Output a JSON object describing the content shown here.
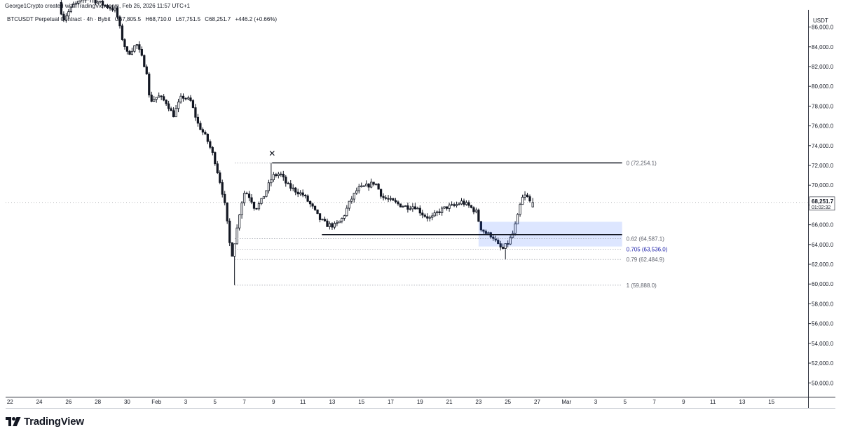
{
  "header": {
    "attribution": "George1Crypto created with TradingView.com, Feb 26, 2026 11:57 UTC+1",
    "symbol": "BTCUSDT Perpetual Contract · 4h · Bybit",
    "open": "O67,805.5",
    "high": "H68,710.0",
    "low": "L67,751.5",
    "close": "C68,251.7",
    "change": "+446.2 (+0.66%)"
  },
  "brand": {
    "name": "TradingView",
    "icon": "tradingview-logo-icon"
  },
  "price_axis": {
    "currency": "USDT",
    "last_price": "68,251.7",
    "countdown": "01:02:32"
  },
  "colors": {
    "candle": "#131722",
    "zone": "#2962ff",
    "fib_0705": "#1e22aa",
    "dotted": "#a3a6af",
    "grid": "#e0e3eb"
  },
  "chart_data": {
    "type": "candlestick",
    "timeframe": "4h",
    "ylim": [
      48600,
      87600
    ],
    "y_ticks": [
      50000,
      52000,
      54000,
      56000,
      58000,
      60000,
      62000,
      64000,
      66000,
      68000,
      70000,
      72000,
      74000,
      76000,
      78000,
      80000,
      82000,
      84000,
      86000
    ],
    "y_tick_labels": [
      "50,000.0",
      "52,000.0",
      "54,000.0",
      "56,000.0",
      "58,000.0",
      "60,000.0",
      "62,000.0",
      "64,000.0",
      "66,000.0",
      "68,000.0",
      "70,000.0",
      "72,000.0",
      "74,000.0",
      "76,000.0",
      "78,000.0",
      "80,000.0",
      "82,000.0",
      "84,000.0",
      "86,000.0"
    ],
    "x_ticks": [
      {
        "day": -10,
        "label": "22"
      },
      {
        "day": -8,
        "label": "24"
      },
      {
        "day": -6,
        "label": "26"
      },
      {
        "day": -4,
        "label": "28"
      },
      {
        "day": -2,
        "label": "30"
      },
      {
        "day": 0,
        "label": "Feb"
      },
      {
        "day": 2,
        "label": "3"
      },
      {
        "day": 4,
        "label": "5"
      },
      {
        "day": 6,
        "label": "7"
      },
      {
        "day": 8,
        "label": "9"
      },
      {
        "day": 10,
        "label": "11"
      },
      {
        "day": 12,
        "label": "13"
      },
      {
        "day": 14,
        "label": "15"
      },
      {
        "day": 16,
        "label": "17"
      },
      {
        "day": 18,
        "label": "19"
      },
      {
        "day": 20,
        "label": "21"
      },
      {
        "day": 22,
        "label": "23"
      },
      {
        "day": 24,
        "label": "25"
      },
      {
        "day": 26,
        "label": "27"
      },
      {
        "day": 28,
        "label": "Mar"
      },
      {
        "day": 30,
        "label": "3"
      },
      {
        "day": 32,
        "label": "5"
      },
      {
        "day": 34,
        "label": "7"
      },
      {
        "day": 36,
        "label": "9"
      },
      {
        "day": 38,
        "label": "11"
      },
      {
        "day": 40,
        "label": "13"
      },
      {
        "day": 42,
        "label": "15"
      }
    ],
    "x_day_range": [
      -10.3,
      44.5
    ],
    "price_path": [
      [
        -6.5,
        88500
      ],
      [
        -6.2,
        86800
      ],
      [
        -5.5,
        88200
      ],
      [
        -4.5,
        89000
      ],
      [
        -3.5,
        88300
      ],
      [
        -2.6,
        87700
      ],
      [
        -2.2,
        85000
      ],
      [
        -1.8,
        83200
      ],
      [
        -1.2,
        84300
      ],
      [
        -0.8,
        82800
      ],
      [
        -0.5,
        81500
      ],
      [
        -0.3,
        78500
      ],
      [
        0.3,
        79000
      ],
      [
        0.9,
        78300
      ],
      [
        1.3,
        77000
      ],
      [
        1.9,
        79000
      ],
      [
        2.5,
        78500
      ],
      [
        3.0,
        76200
      ],
      [
        3.6,
        74700
      ],
      [
        4.1,
        72800
      ],
      [
        4.6,
        69800
      ],
      [
        4.9,
        67500
      ],
      [
        5.1,
        64800
      ],
      [
        5.3,
        62800
      ],
      [
        5.6,
        65000
      ],
      [
        5.9,
        67800
      ],
      [
        6.2,
        69400
      ],
      [
        6.6,
        68700
      ],
      [
        6.9,
        67600
      ],
      [
        7.3,
        68300
      ],
      [
        7.7,
        69600
      ],
      [
        8.1,
        70900
      ],
      [
        8.6,
        71200
      ],
      [
        9.1,
        70000
      ],
      [
        9.6,
        69500
      ],
      [
        10.2,
        69000
      ],
      [
        10.8,
        67800
      ],
      [
        11.3,
        66600
      ],
      [
        11.8,
        66000
      ],
      [
        12.4,
        65900
      ],
      [
        12.9,
        66700
      ],
      [
        13.4,
        68400
      ],
      [
        13.9,
        69600
      ],
      [
        14.5,
        69900
      ],
      [
        15.1,
        70300
      ],
      [
        15.6,
        68800
      ],
      [
        16.2,
        68400
      ],
      [
        16.8,
        68000
      ],
      [
        17.3,
        67800
      ],
      [
        17.8,
        67900
      ],
      [
        18.4,
        67000
      ],
      [
        18.9,
        66600
      ],
      [
        19.4,
        67300
      ],
      [
        20.0,
        67800
      ],
      [
        20.5,
        67900
      ],
      [
        21.0,
        68300
      ],
      [
        21.5,
        67900
      ],
      [
        22.0,
        67300
      ],
      [
        22.3,
        65700
      ],
      [
        22.7,
        65100
      ],
      [
        23.1,
        64900
      ],
      [
        23.5,
        63900
      ],
      [
        23.8,
        63500
      ],
      [
        24.2,
        64200
      ],
      [
        24.5,
        65100
      ],
      [
        24.8,
        66600
      ],
      [
        25.1,
        68600
      ],
      [
        25.4,
        69000
      ],
      [
        25.7,
        68251.7
      ]
    ],
    "last_candle_ohlc": {
      "open": 67805.5,
      "high": 68710.0,
      "low": 67751.5,
      "close": 68251.7
    },
    "fibonacci": [
      {
        "level": "0",
        "price": 72254.1,
        "label": "0 (72,254.1)"
      },
      {
        "level": "0.62",
        "price": 64587.1,
        "label": "0.62 (64,587.1)"
      },
      {
        "level": "0.705",
        "price": 63536.0,
        "label": "0.705 (63,536.0)"
      },
      {
        "level": "0.79",
        "price": 62484.9,
        "label": "0.79 (62,484.9)"
      },
      {
        "level": "1",
        "price": 59888.0,
        "label": "1 (59,888.0)"
      }
    ],
    "horizontal_lines": [
      {
        "name": "resistance-line",
        "price": 72254.1,
        "from_day": 7.9,
        "to_day": 31.8
      },
      {
        "name": "support-line",
        "price": 65000,
        "from_day": 11.3,
        "to_day": 31.8
      }
    ],
    "zone": {
      "name": "demand-zone",
      "from_day": 22.0,
      "to_day": 31.8,
      "top": 66300,
      "bottom": 63800
    },
    "marker": {
      "name": "swing-high-marker",
      "day": 7.9,
      "price": 73200,
      "symbol": "✕"
    }
  }
}
